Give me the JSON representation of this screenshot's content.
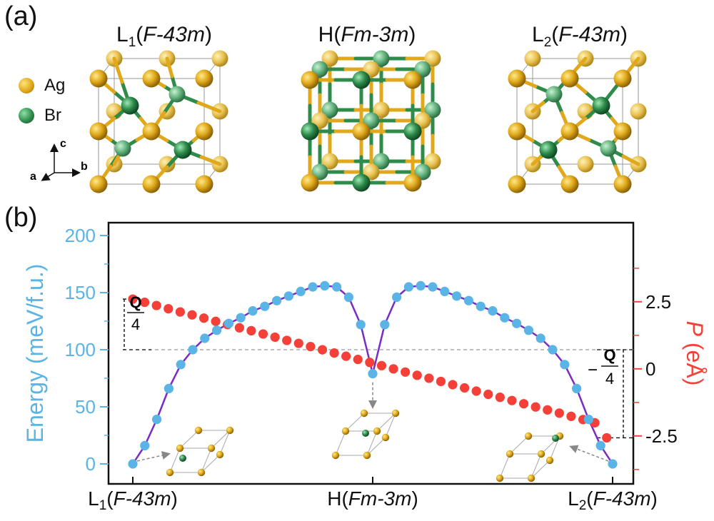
{
  "figure": {
    "panel_a": "(a)",
    "panel_b": "(b)"
  },
  "structures": [
    {
      "name": "L",
      "sub": "1",
      "group": "F-43m"
    },
    {
      "name": "H",
      "sub": "",
      "group": "Fm-3m"
    },
    {
      "name": "L",
      "sub": "2",
      "group": "F-43m"
    }
  ],
  "legend": {
    "items": [
      {
        "label": "Ag",
        "color": "#e0a81a"
      },
      {
        "label": "Br",
        "color": "#2e8b4a"
      }
    ]
  },
  "axes_triad": {
    "a": "a",
    "b": "b",
    "c": "c"
  },
  "annotations": {
    "q_over_4": {
      "num": "Q",
      "den": "4"
    },
    "minus_q_over_4": {
      "sign": "−",
      "num": "Q",
      "den": "4"
    }
  },
  "colors": {
    "energy": "#5ab4e5",
    "polarization": "#f5403a",
    "curve": "#7a2bc4",
    "ag": "#e0a81a",
    "br": "#2e8b4a"
  },
  "chart_data": {
    "type": "scatter",
    "x_ticks": [
      {
        "name": "L",
        "sub": "1",
        "group": "F-43m"
      },
      {
        "name": "H",
        "sub": "",
        "group": "Fm-3m"
      },
      {
        "name": "L",
        "sub": "2",
        "group": "F-43m"
      }
    ],
    "ylabel_left": "Energy (meV/f.u.)",
    "ylabel_right_symbol": "P",
    "ylabel_right_unit": " (eÅ)",
    "y_left_range": [
      0,
      200
    ],
    "y_left_ticks": [
      0,
      50,
      100,
      150,
      200
    ],
    "y_right_range": [
      -4.5,
      5.5
    ],
    "y_right_ticks": [
      {
        "value": 2.5,
        "label": "2.5"
      },
      {
        "value": 0,
        "label": "0"
      },
      {
        "value": -2.5,
        "label": "-2.5"
      }
    ],
    "reference_energy": 100,
    "energy": {
      "x": [
        0,
        0.025,
        0.05,
        0.075,
        0.1,
        0.125,
        0.15,
        0.175,
        0.2,
        0.225,
        0.25,
        0.275,
        0.3,
        0.325,
        0.35,
        0.375,
        0.4,
        0.425,
        0.45,
        0.475,
        0.5,
        0.525,
        0.55,
        0.575,
        0.6,
        0.625,
        0.65,
        0.675,
        0.7,
        0.725,
        0.75,
        0.775,
        0.8,
        0.825,
        0.85,
        0.875,
        0.9,
        0.925,
        0.95,
        0.975,
        1
      ],
      "y": [
        0,
        16,
        39,
        66,
        87,
        100,
        110,
        117,
        123,
        128,
        134,
        138,
        143,
        147,
        151,
        155,
        156,
        155,
        146,
        122,
        79,
        122,
        146,
        155,
        156,
        155,
        151,
        147,
        143,
        138,
        134,
        128,
        123,
        117,
        110,
        100,
        87,
        66,
        39,
        16,
        0
      ]
    },
    "polarization": {
      "x": [
        0,
        0.0247,
        0.0494,
        0.0741,
        0.0988,
        0.1235,
        0.1481,
        0.1728,
        0.1975,
        0.2222,
        0.2469,
        0.2716,
        0.2963,
        0.321,
        0.3457,
        0.3704,
        0.3951,
        0.4198,
        0.4444,
        0.4691,
        0.4938,
        0.5185,
        0.5432,
        0.5679,
        0.5926,
        0.6173,
        0.642,
        0.6667,
        0.6914,
        0.716,
        0.7407,
        0.7654,
        0.7901,
        0.8148,
        0.8395,
        0.8642,
        0.8889,
        0.9136,
        0.9383,
        0.963,
        0.9877
      ],
      "y": [
        2.6,
        2.48,
        2.36,
        2.24,
        2.12,
        2.01,
        1.89,
        1.77,
        1.65,
        1.53,
        1.42,
        1.3,
        1.18,
        1.06,
        0.95,
        0.83,
        0.71,
        0.59,
        0.47,
        0.35,
        0.24,
        0.12,
        0.0,
        -0.12,
        -0.24,
        -0.35,
        -0.47,
        -0.59,
        -0.71,
        -0.83,
        -0.95,
        -1.06,
        -1.18,
        -1.3,
        -1.42,
        -1.53,
        -1.65,
        -1.77,
        -1.89,
        -2.01,
        -2.57
      ]
    }
  }
}
